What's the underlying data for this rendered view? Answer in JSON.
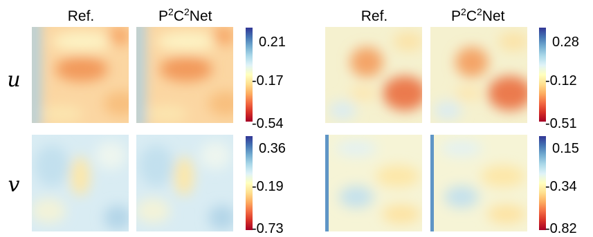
{
  "panel_headers": [
    "Ref.",
    "P",
    "2",
    "C",
    "2",
    "Net"
  ],
  "row_labels": [
    "u",
    "v"
  ],
  "groups": [
    {
      "columns": [
        "Ref.",
        "P²C²Net"
      ],
      "colorbars": [
        {
          "row": "u",
          "ticks": [
            "0.21",
            "-0.17",
            "-0.54"
          ]
        },
        {
          "row": "v",
          "ticks": [
            "0.36",
            "-0.19",
            "-0.73"
          ]
        }
      ]
    },
    {
      "columns": [
        "Ref.",
        "P²C²Net"
      ],
      "colorbars": [
        {
          "row": "u",
          "ticks": [
            "0.28",
            "-0.12",
            "-0.51"
          ]
        },
        {
          "row": "v",
          "ticks": [
            "0.15",
            "-0.34",
            "-0.82"
          ]
        }
      ]
    }
  ],
  "colormap": [
    "#a50026",
    "#d73027",
    "#f46d43",
    "#fdae61",
    "#fee090",
    "#ffffbf",
    "#e0f3f8",
    "#abd9e9",
    "#74add1",
    "#4575b4",
    "#313695"
  ],
  "chart_data": [
    {
      "type": "heatmap",
      "title": "",
      "row": "u",
      "columns": [
        "Ref.",
        "P²C²Net"
      ],
      "colorbar": [
        -0.54,
        0.21
      ],
      "ticks": [
        0.21,
        -0.17,
        -0.54
      ]
    },
    {
      "type": "heatmap",
      "title": "",
      "row": "v",
      "columns": [
        "Ref.",
        "P²C²Net"
      ],
      "colorbar": [
        -0.73,
        0.36
      ],
      "ticks": [
        0.36,
        -0.19,
        -0.73
      ]
    },
    {
      "type": "heatmap",
      "title": "",
      "row": "u",
      "columns": [
        "Ref.",
        "P²C²Net"
      ],
      "colorbar": [
        -0.51,
        0.28
      ],
      "ticks": [
        0.28,
        -0.12,
        -0.51
      ]
    },
    {
      "type": "heatmap",
      "title": "",
      "row": "v",
      "columns": [
        "Ref.",
        "P²C²Net"
      ],
      "colorbar": [
        -0.82,
        0.15
      ],
      "ticks": [
        0.15,
        -0.34,
        -0.82
      ]
    }
  ]
}
